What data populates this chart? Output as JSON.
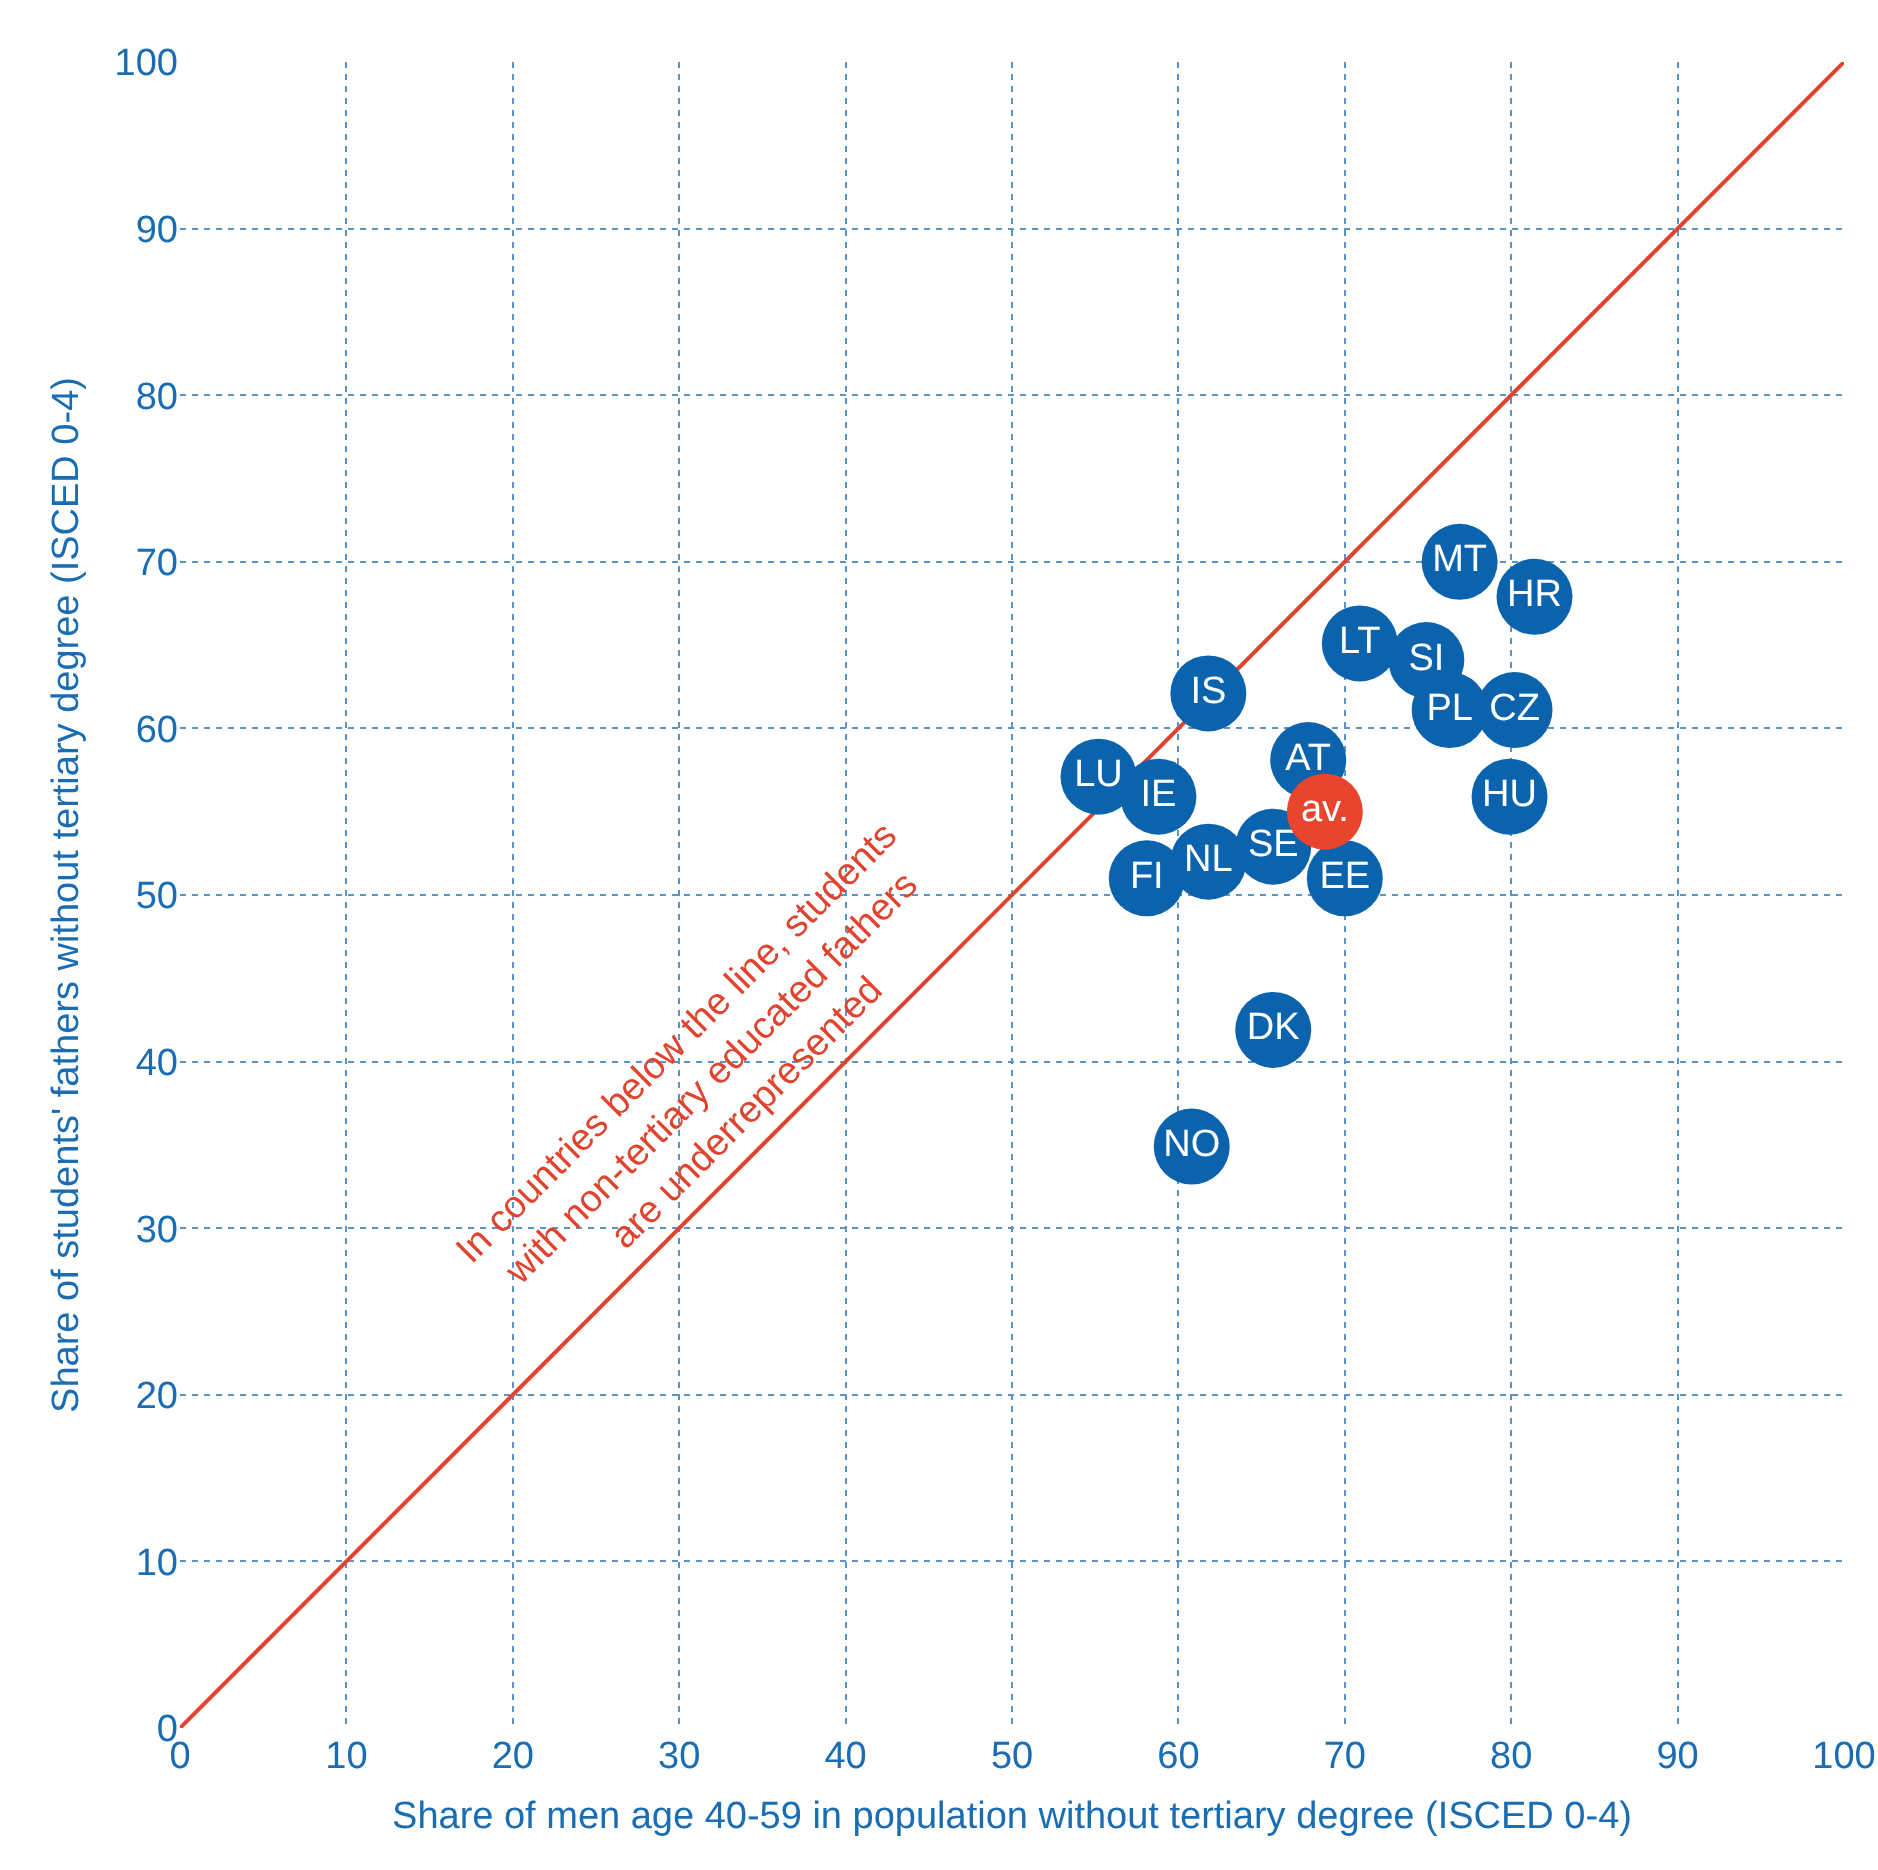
{
  "chart_data": {
    "type": "scatter",
    "xlabel": "Share of men age 40-59 in population without tertiary degree (ISCED 0-4)",
    "ylabel": "Share of students' fathers without tertiary degree (ISCED 0-4)",
    "xlim": [
      0,
      100
    ],
    "ylim": [
      0,
      100
    ],
    "xticks": [
      0,
      10,
      20,
      30,
      40,
      50,
      60,
      70,
      80,
      90,
      100
    ],
    "yticks": [
      0,
      10,
      20,
      30,
      40,
      50,
      60,
      70,
      80,
      90,
      100
    ],
    "grid": true,
    "series": [
      {
        "type": "line",
        "color": "#e0442f",
        "x": [
          0,
          100
        ],
        "values": [
          0,
          100
        ],
        "marker": "none"
      },
      {
        "color": "#0c63ad",
        "marker": "circle",
        "x": [
          76.9,
          81.4,
          70.9,
          74.9,
          61.8,
          76.3,
          80.2,
          67.8,
          55.2,
          58.8,
          79.9,
          65.7,
          61.8,
          58.1,
          70.0,
          65.7,
          60.8
        ],
        "values": [
          70.0,
          67.9,
          65.1,
          64.1,
          62.1,
          61.1,
          61.1,
          58.1,
          57.1,
          55.9,
          55.9,
          52.9,
          52.0,
          51.0,
          51.0,
          41.9,
          34.9
        ],
        "value_labels": [
          "MT",
          "HR",
          "LT",
          "SI",
          "IS",
          "PL",
          "CZ",
          "AT",
          "LU",
          "IE",
          "HU",
          "SE",
          "NL",
          "FI",
          "EE",
          "DK",
          "NO"
        ]
      },
      {
        "color": "#e8452f",
        "marker": "circle",
        "x": [
          68.8
        ],
        "values": [
          55.0
        ],
        "value_labels": [
          "av."
        ]
      }
    ],
    "annotations": [
      "In countries below the line, students\nwith non-tertiary educated fathers\nare underrepresented"
    ]
  }
}
